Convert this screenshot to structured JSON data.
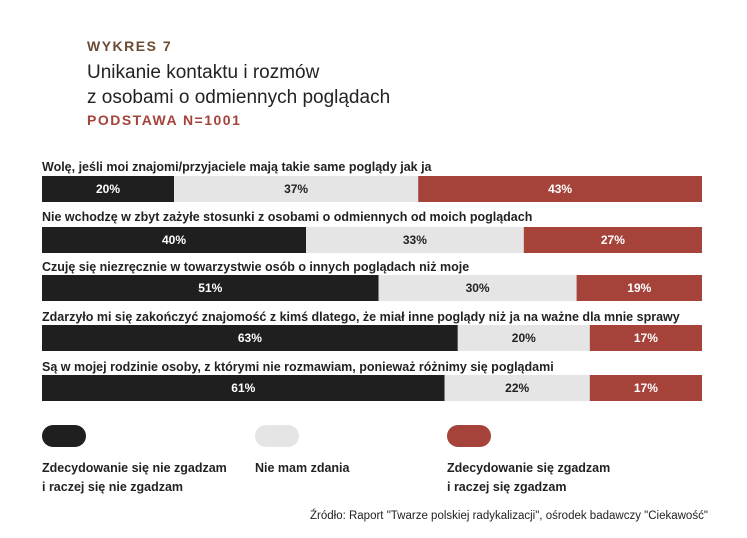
{
  "header": {
    "chart_label": "WYKRES 7",
    "title_line1": "Unikanie kontaktu i rozmów",
    "title_line2": "z osobami o odmiennych poglądach",
    "base": "PODSTAWA N=1001"
  },
  "colors": {
    "disagree": "#1f1f1f",
    "neutral": "#e5e5e5",
    "agree": "#a5433a"
  },
  "legend": {
    "disagree": "Zdecydowanie się nie zgadzam\ni raczej się nie zgadzam",
    "neutral": "Nie mam zdania",
    "agree": "Zdecydowanie się zgadzam\ni raczej się zgadzam"
  },
  "source": "Źródło: Raport \"Twarze polskiej radykalizacji\", ośrodek badawczy \"Ciekawość\"",
  "chart_data": {
    "type": "bar",
    "stacked": true,
    "orientation": "horizontal",
    "unit": "%",
    "categories": [
      "Wolę, jeśli moi znajomi/przyjaciele mają takie same poglądy jak ja",
      "Nie wchodzę w zbyt zażyłe stosunki z osobami o odmiennych od moich poglądach",
      "Czuję się niezręcznie w towarzystwie osób o innych poglądach niż moje",
      "Zdarzyło mi się zakończyć znajomość z kimś dlatego, że miał inne poglądy niż ja na ważne dla mnie sprawy",
      "Są w mojej rodzinie osoby, z którymi nie rozmawiam, ponieważ różnimy się poglądami"
    ],
    "series": [
      {
        "name": "Zdecydowanie się nie zgadzam i raczej się nie zgadzam",
        "values": [
          20,
          40,
          51,
          63,
          61
        ],
        "color": "#1f1f1f"
      },
      {
        "name": "Nie mam zdania",
        "values": [
          37,
          33,
          30,
          20,
          22
        ],
        "color": "#e5e5e5"
      },
      {
        "name": "Zdecydowanie się zgadzam i raczej się zgadzam",
        "values": [
          43,
          27,
          19,
          17,
          17
        ],
        "color": "#a5433a"
      }
    ],
    "xlim": [
      0,
      100
    ]
  }
}
